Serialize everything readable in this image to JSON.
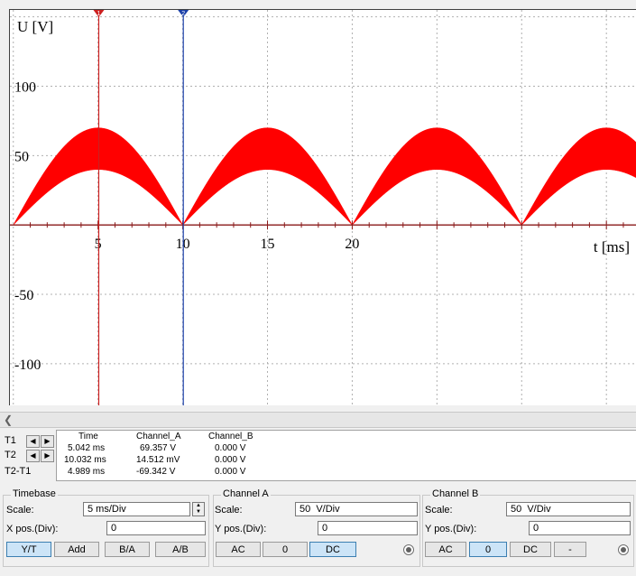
{
  "chart_data": {
    "type": "line",
    "ylabel": "U [V]",
    "xlabel": "t [ms]",
    "x_ticks": [
      5,
      10,
      15,
      20
    ],
    "y_ticks": [
      100,
      50,
      -50,
      -100
    ],
    "y_range": [
      -130,
      155
    ],
    "x_range": [
      -0.2,
      36.8
    ],
    "series": [
      {
        "color": "#ff0000",
        "fill": true,
        "period_ms": 10,
        "upper_peak": 70,
        "lower_peak": 40,
        "x_start": 0,
        "x_end": 36.8
      }
    ],
    "cursors": [
      {
        "label": "1",
        "x": 5.042,
        "color": "#cc2020"
      },
      {
        "label": "2",
        "x": 10.032,
        "color": "#1a3fa8"
      }
    ],
    "grid": true
  },
  "readout": {
    "headers": [
      "Time",
      "Channel_A",
      "Channel_B"
    ],
    "rows": [
      {
        "label": "T1",
        "time": "5.042 ms",
        "a": "69.357 V",
        "b": "0.000 V"
      },
      {
        "label": "T2",
        "time": "10.032 ms",
        "a": "14.512 mV",
        "b": "0.000 V"
      },
      {
        "label": "T2-T1",
        "time": "4.989 ms",
        "a": "-69.342 V",
        "b": "0.000 V"
      }
    ]
  },
  "timebase": {
    "title": "Timebase",
    "scale_label": "Scale:",
    "scale_value": "5 ms/Div",
    "xpos_label": "X pos.(Div):",
    "xpos_value": "0",
    "buttons": [
      "Y/T",
      "Add",
      "B/A",
      "A/B"
    ]
  },
  "channel_a": {
    "title": "Channel A",
    "scale_label": "Scale:",
    "scale_value": "50  V/Div",
    "ypos_label": "Y pos.(Div):",
    "ypos_value": "0",
    "buttons": [
      "AC",
      "0",
      "DC"
    ]
  },
  "channel_b": {
    "title": "Channel B",
    "scale_label": "Scale:",
    "scale_value": "50  V/Div",
    "ypos_label": "Y pos.(Div):",
    "ypos_value": "0",
    "buttons": [
      "AC",
      "0",
      "DC",
      "-"
    ]
  },
  "icons": {
    "scroll_left": "chevron-left-icon",
    "cursor_left": "arrow-left-icon",
    "cursor_right": "arrow-right-icon"
  }
}
